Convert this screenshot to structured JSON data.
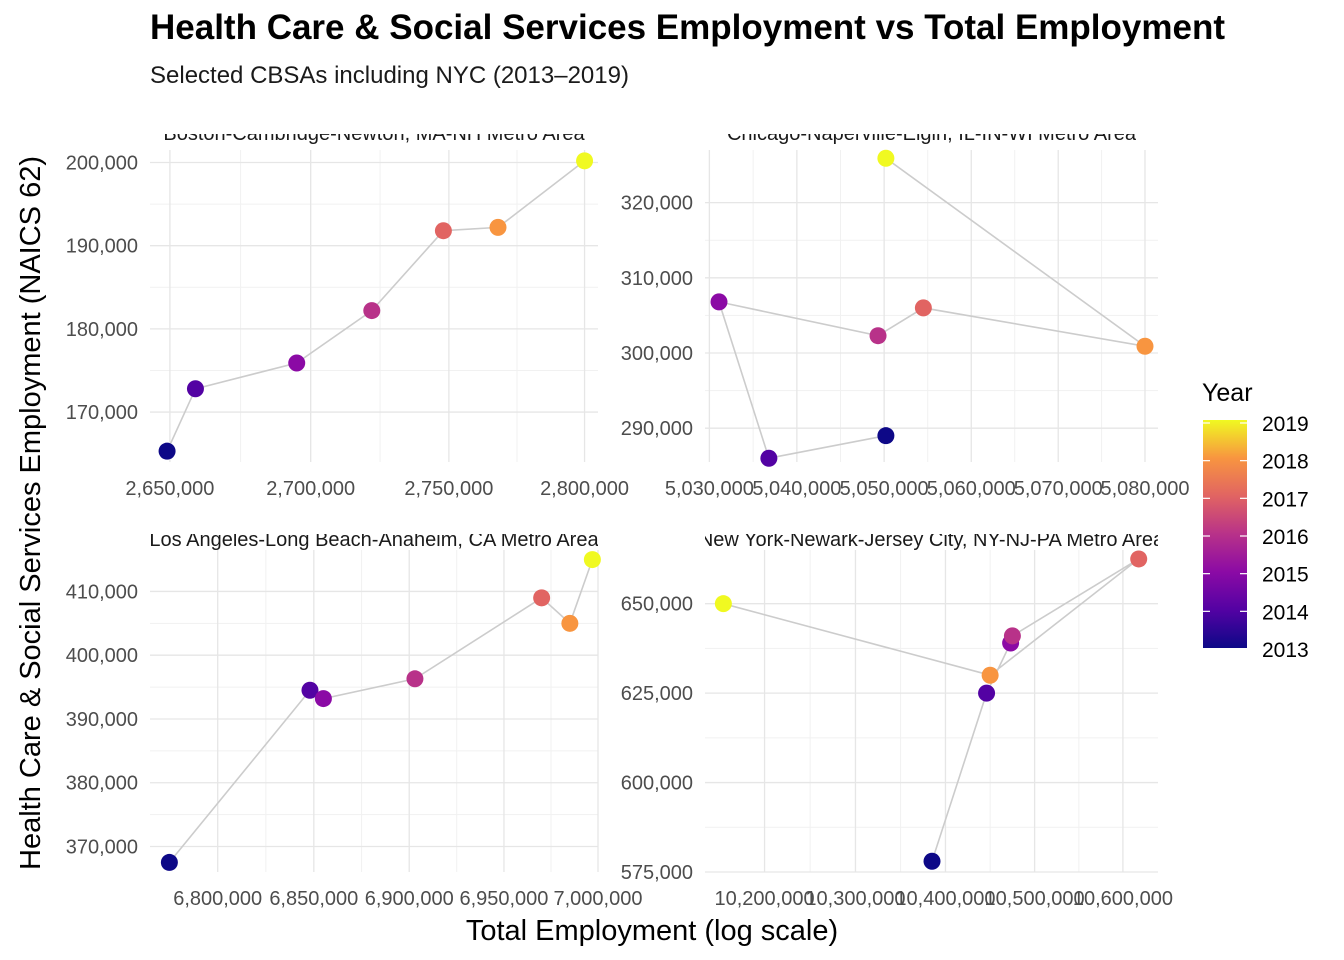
{
  "title": "Health Care & Social Services Employment vs Total Employment",
  "subtitle": "Selected CBSAs including NYC (2013–2019)",
  "xlabel": "Total Employment (log scale)",
  "ylabel": "Health Care & Social Services Employment (NAICS 62)",
  "legend": {
    "title": "Year",
    "labels": [
      "2019",
      "2018",
      "2017",
      "2016",
      "2015",
      "2014",
      "2013"
    ],
    "colors": {
      "2013": "#0d0887",
      "2014": "#5302a3",
      "2015": "#8b0aa5",
      "2016": "#b83289",
      "2017": "#e16462",
      "2018": "#f89540",
      "2019": "#f0f921"
    },
    "placement": "right"
  },
  "chart_data": [
    {
      "type": "scatter",
      "panel": "Boston-Cambridge-Newton, MA-NH Metro Area",
      "x_scale": "log",
      "xlim": [
        2643000,
        2805000
      ],
      "ylim": [
        164000,
        201500
      ],
      "x_ticks": [
        2650000,
        2700000,
        2750000,
        2800000
      ],
      "x_tick_labels": [
        "2,650,000",
        "2,700,000",
        "2,750,000",
        "2,800,000"
      ],
      "y_ticks": [
        170000,
        180000,
        190000,
        200000
      ],
      "y_tick_labels": [
        "170,000",
        "180,000",
        "190,000",
        "200,000"
      ],
      "points": [
        {
          "year": 2013,
          "x": 2649000,
          "y": 165300
        },
        {
          "year": 2014,
          "x": 2659000,
          "y": 172800
        },
        {
          "year": 2015,
          "x": 2695000,
          "y": 175900
        },
        {
          "year": 2016,
          "x": 2722000,
          "y": 182200
        },
        {
          "year": 2017,
          "x": 2748000,
          "y": 191800
        },
        {
          "year": 2018,
          "x": 2768000,
          "y": 192200
        },
        {
          "year": 2019,
          "x": 2800000,
          "y": 200200
        }
      ]
    },
    {
      "type": "scatter",
      "panel": "Chicago-Naperville-Elgin, IL-IN-WI Metro Area",
      "x_scale": "log",
      "xlim": [
        5029500,
        5081500
      ],
      "ylim": [
        285500,
        327000
      ],
      "x_ticks": [
        5030000,
        5040000,
        5050000,
        5060000,
        5070000,
        5080000
      ],
      "x_tick_labels": [
        "5,030,000",
        "5,040,000",
        "5,050,000",
        "5,060,000",
        "5,070,000",
        "5,080,000"
      ],
      "y_ticks": [
        290000,
        300000,
        310000,
        320000
      ],
      "y_tick_labels": [
        "290,000",
        "300,000",
        "310,000",
        "320,000"
      ],
      "points": [
        {
          "year": 2013,
          "x": 5050200,
          "y": 289000
        },
        {
          "year": 2014,
          "x": 5036800,
          "y": 286000
        },
        {
          "year": 2015,
          "x": 5031100,
          "y": 306800
        },
        {
          "year": 2016,
          "x": 5049300,
          "y": 302300
        },
        {
          "year": 2017,
          "x": 5054500,
          "y": 306000
        },
        {
          "year": 2018,
          "x": 5080000,
          "y": 300900
        },
        {
          "year": 2019,
          "x": 5050200,
          "y": 325900
        }
      ]
    },
    {
      "type": "scatter",
      "panel": "Los Angeles-Long Beach-Anaheim, CA Metro Area",
      "x_scale": "log",
      "xlim": [
        6765000,
        7000000
      ],
      "ylim": [
        366000,
        416500
      ],
      "x_ticks": [
        6800000,
        6850000,
        6900000,
        6950000,
        7000000
      ],
      "x_tick_labels": [
        "6,800,000",
        "6,850,000",
        "6,900,000",
        "6,950,000",
        "7,000,000"
      ],
      "y_ticks": [
        370000,
        380000,
        390000,
        400000,
        410000
      ],
      "y_tick_labels": [
        "370,000",
        "380,000",
        "390,000",
        "400,000",
        "410,000"
      ],
      "points": [
        {
          "year": 2013,
          "x": 6775000,
          "y": 367500
        },
        {
          "year": 2014,
          "x": 6848000,
          "y": 394500
        },
        {
          "year": 2015,
          "x": 6855000,
          "y": 393200
        },
        {
          "year": 2016,
          "x": 6903000,
          "y": 396300
        },
        {
          "year": 2017,
          "x": 6970000,
          "y": 409000
        },
        {
          "year": 2018,
          "x": 6985000,
          "y": 405000
        },
        {
          "year": 2019,
          "x": 6997000,
          "y": 415000
        }
      ]
    },
    {
      "type": "scatter",
      "panel": "New York-Newark-Jersey City, NY-NJ-PA Metro Area",
      "x_scale": "log",
      "xlim": [
        10135000,
        10640000
      ],
      "ylim": [
        575000,
        665000
      ],
      "x_ticks": [
        10200000,
        10300000,
        10400000,
        10500000,
        10600000
      ],
      "x_tick_labels": [
        "10,200,000",
        "10,300,000",
        "10,400,000",
        "10,500,000",
        "10,600,000"
      ],
      "y_ticks": [
        575000,
        600000,
        625000,
        650000
      ],
      "y_tick_labels": [
        "575,000",
        "600,000",
        "625,000",
        "650,000"
      ],
      "points": [
        {
          "year": 2013,
          "x": 10385000,
          "y": 578000
        },
        {
          "year": 2014,
          "x": 10446000,
          "y": 625000
        },
        {
          "year": 2015,
          "x": 10473000,
          "y": 639000
        },
        {
          "year": 2016,
          "x": 10475000,
          "y": 641000
        },
        {
          "year": 2017,
          "x": 10618000,
          "y": 662500
        },
        {
          "year": 2018,
          "x": 10450000,
          "y": 630000
        },
        {
          "year": 2019,
          "x": 10155000,
          "y": 650000
        }
      ]
    }
  ]
}
